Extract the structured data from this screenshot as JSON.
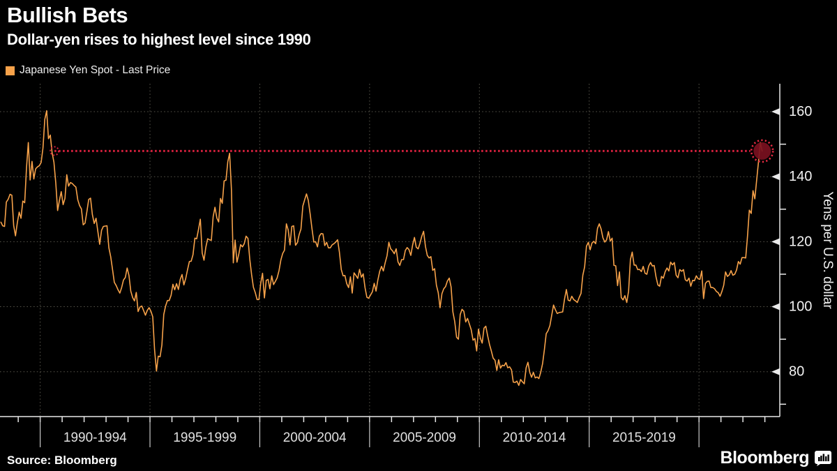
{
  "header": {
    "title": "Bullish Bets",
    "subtitle": "Dollar-yen rises to highest level since 1990"
  },
  "legend": {
    "label": "Japanese Yen Spot - Last Price",
    "swatch_color": "#f7a24a"
  },
  "footer": {
    "source": "Source: Bloomberg",
    "brand": "Bloomberg"
  },
  "colors": {
    "background": "#000000",
    "text": "#ffffff",
    "series_line": "#f7a24a",
    "reference_red": "#d8203e",
    "marker_fill": "#7a1020",
    "marker_ring": "#e82a42",
    "grid": "#56544a",
    "axis": "#e9e9e9",
    "tick_label": "#f2f2f2",
    "period_label": "#e0e0e0",
    "separator": "#c9c9c9"
  },
  "chart_data": {
    "type": "line",
    "title": "Bullish Bets",
    "subtitle": "Dollar-yen rises to highest level since 1990",
    "ylabel": "Yens per U.S. dollar",
    "xlabel": "",
    "legend_position": "top-left",
    "grid": "dotted",
    "xlim": [
      1988.17,
      2023.68
    ],
    "ylim": [
      66.2,
      168.6
    ],
    "yticks_major": [
      80,
      100,
      120,
      140,
      160
    ],
    "yticks_minor": [
      70,
      90,
      110,
      130,
      150
    ],
    "x_period_starts": [
      1990,
      1995,
      2000,
      2005,
      2010,
      2015,
      2020
    ],
    "x_period_labels": [
      "1990-1994",
      "1995-1999",
      "2000-2004",
      "2005-2009",
      "2010-2014",
      "2015-2019"
    ],
    "reference_line": {
      "value": 147.9,
      "x_start_year": 1990.65,
      "style": "dotted",
      "color": "#d8203e"
    },
    "end_marker": {
      "value": 147.9,
      "fill": "#7a1020",
      "ring": "#e82a42"
    },
    "series": [
      {
        "name": "Japanese Yen Spot - Last Price",
        "color": "#f7a24a",
        "x_start_year": 1988.21,
        "x_step_years": 0.0833333,
        "values": [
          126.0,
          124.9,
          124.7,
          132.2,
          133.1,
          134.6,
          134.3,
          125.0,
          121.8,
          125.9,
          129.1,
          127.2,
          132.5,
          132.0,
          142.7,
          150.5,
          139.0,
          144.7,
          139.3,
          142.4,
          143.0,
          143.4,
          144.4,
          148.8,
          157.6,
          160.3,
          151.7,
          152.8,
          147.4,
          144.5,
          138.0,
          129.6,
          132.7,
          135.4,
          131.4,
          133.3,
          140.6,
          137.1,
          138.2,
          137.9,
          137.3,
          136.8,
          132.9,
          131.1,
          130.1,
          125.2,
          125.7,
          129.3,
          133.0,
          133.4,
          128.4,
          125.6,
          127.2,
          123.1,
          119.2,
          123.5,
          124.7,
          124.8,
          124.9,
          118.1,
          115.4,
          111.5,
          107.5,
          106.5,
          105.2,
          104.2,
          105.9,
          108.2,
          109.0,
          111.9,
          109.6,
          104.8,
          102.8,
          101.8,
          104.4,
          98.5,
          99.9,
          100.2,
          98.8,
          97.4,
          98.9,
          99.7,
          98.6,
          96.9,
          86.8,
          80.2,
          84.8,
          84.6,
          88.2,
          97.6,
          100.2,
          101.9,
          101.9,
          103.5,
          106.9,
          105.2,
          107.1,
          105.3,
          108.4,
          109.9,
          106.7,
          108.7,
          111.4,
          113.9,
          114.0,
          116.0,
          121.1,
          120.9,
          123.8,
          126.9,
          116.5,
          114.3,
          118.3,
          120.9,
          120.6,
          120.4,
          127.7,
          130.6,
          127.3,
          126.1,
          133.3,
          131.8,
          138.7,
          138.9,
          144.6,
          147.2,
          136.1,
          113.5,
          120.5,
          113.7,
          116.1,
          119.1,
          118.4,
          119.4,
          121.7,
          121.0,
          114.6,
          109.9,
          106.0,
          104.4,
          102.2,
          102.2,
          107.2,
          110.3,
          102.7,
          108.1,
          108.4,
          105.5,
          109.5,
          106.8,
          107.8,
          108.9,
          111.2,
          114.4,
          116.4,
          117.4,
          125.5,
          123.6,
          119.0,
          124.7,
          124.9,
          118.9,
          119.7,
          122.2,
          123.9,
          131.0,
          132.9,
          134.7,
          132.7,
          128.5,
          124.0,
          119.9,
          120.0,
          118.4,
          121.7,
          122.5,
          122.4,
          118.8,
          119.8,
          118.1,
          118.1,
          119.0,
          119.4,
          119.9,
          120.6,
          116.8,
          111.4,
          109.5,
          109.6,
          107.1,
          105.9,
          109.2,
          104.2,
          110.4,
          109.6,
          108.7,
          111.5,
          109.1,
          110.1,
          105.8,
          102.9,
          102.6,
          103.6,
          104.6,
          107.2,
          104.8,
          108.2,
          110.9,
          112.4,
          111.0,
          113.5,
          115.7,
          119.8,
          117.8,
          117.2,
          116.3,
          117.8,
          113.8,
          112.7,
          114.5,
          114.5,
          117.3,
          118.2,
          117.6,
          115.8,
          119.0,
          121.3,
          118.3,
          117.8,
          119.5,
          121.7,
          123.2,
          118.5,
          115.8,
          115.0,
          115.4,
          111.2,
          111.7,
          106.6,
          104.3,
          99.7,
          104.0,
          105.5,
          106.2,
          107.9,
          108.8,
          106.1,
          98.4,
          95.5,
          90.6,
          90.0,
          97.6,
          99.2,
          98.6,
          95.3,
          96.4,
          94.7,
          93.0,
          89.7,
          90.2,
          86.4,
          93.1,
          90.3,
          88.8,
          93.4,
          94.0,
          91.0,
          88.4,
          86.4,
          84.2,
          83.5,
          80.4,
          83.7,
          81.1,
          82.0,
          81.8,
          82.8,
          81.2,
          81.5,
          80.6,
          76.8,
          76.7,
          77.1,
          75.8,
          77.6,
          76.9,
          76.3,
          81.2,
          82.9,
          79.8,
          78.3,
          79.8,
          78.1,
          78.4,
          77.9,
          79.8,
          82.5,
          86.8,
          91.7,
          92.6,
          94.2,
          97.4,
          100.5,
          99.1,
          97.9,
          98.2,
          98.3,
          98.4,
          102.4,
          105.3,
          102.0,
          101.8,
          103.2,
          102.2,
          101.8,
          101.3,
          102.8,
          104.1,
          109.7,
          112.3,
          118.6,
          119.8,
          117.5,
          119.6,
          120.1,
          119.4,
          124.1,
          125.5,
          123.9,
          121.2,
          119.9,
          120.6,
          123.1,
          120.2,
          121.1,
          112.7,
          112.6,
          106.5,
          110.7,
          102.8,
          102.1,
          103.4,
          101.3,
          104.8,
          114.5,
          116.8,
          112.8,
          112.8,
          111.4,
          111.5,
          110.8,
          112.4,
          110.3,
          110.0,
          112.5,
          113.6,
          112.5,
          112.7,
          109.2,
          106.7,
          106.3,
          109.3,
          108.8,
          110.8,
          111.9,
          111.0,
          113.7,
          112.9,
          113.6,
          109.7,
          108.9,
          111.4,
          110.9,
          111.4,
          108.3,
          107.9,
          108.8,
          106.3,
          108.1,
          108.0,
          109.5,
          108.6,
          108.4,
          111.0,
          102.5,
          107.2,
          107.8,
          107.9,
          105.9,
          105.9,
          105.5,
          104.7,
          104.3,
          103.2,
          104.7,
          106.6,
          110.7,
          109.3,
          109.8,
          111.1,
          109.7,
          110.0,
          111.3,
          113.9,
          113.1,
          115.1,
          115.1,
          115.0,
          121.7,
          129.7,
          128.7,
          135.7,
          133.2,
          138.9,
          144.7,
          150.5,
          147.9
        ]
      }
    ]
  }
}
